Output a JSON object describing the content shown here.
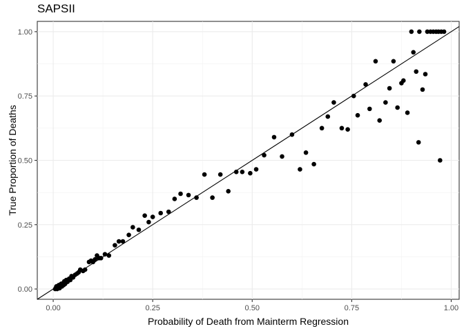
{
  "chart_data": {
    "type": "scatter",
    "title": "SAPSII",
    "xlabel": "Probability of Death from Mainterm Regression",
    "ylabel": "True Proportion of Deaths",
    "xlim": [
      -0.04,
      1.02
    ],
    "ylim": [
      -0.04,
      1.04
    ],
    "x_ticks": [
      0.0,
      0.25,
      0.5,
      0.75,
      1.0
    ],
    "x_tick_labels": [
      "0.00",
      "0.25",
      "0.50",
      "0.75",
      "1.00"
    ],
    "y_ticks": [
      0.0,
      0.25,
      0.5,
      0.75,
      1.0
    ],
    "y_tick_labels": [
      "0.00",
      "0.25",
      "0.50",
      "0.75",
      "1.00"
    ],
    "grid": true,
    "reference_line": "y = x",
    "points": [
      [
        0.005,
        0.0
      ],
      [
        0.007,
        0.005
      ],
      [
        0.008,
        0.01
      ],
      [
        0.01,
        0.0
      ],
      [
        0.012,
        0.008
      ],
      [
        0.014,
        0.015
      ],
      [
        0.016,
        0.003
      ],
      [
        0.018,
        0.012
      ],
      [
        0.02,
        0.02
      ],
      [
        0.022,
        0.01
      ],
      [
        0.024,
        0.022
      ],
      [
        0.026,
        0.015
      ],
      [
        0.028,
        0.03
      ],
      [
        0.03,
        0.02
      ],
      [
        0.033,
        0.035
      ],
      [
        0.036,
        0.028
      ],
      [
        0.04,
        0.04
      ],
      [
        0.043,
        0.035
      ],
      [
        0.046,
        0.05
      ],
      [
        0.05,
        0.045
      ],
      [
        0.055,
        0.055
      ],
      [
        0.06,
        0.06
      ],
      [
        0.064,
        0.065
      ],
      [
        0.068,
        0.075
      ],
      [
        0.075,
        0.07
      ],
      [
        0.08,
        0.075
      ],
      [
        0.09,
        0.105
      ],
      [
        0.095,
        0.11
      ],
      [
        0.1,
        0.105
      ],
      [
        0.105,
        0.115
      ],
      [
        0.11,
        0.13
      ],
      [
        0.115,
        0.12
      ],
      [
        0.12,
        0.12
      ],
      [
        0.13,
        0.135
      ],
      [
        0.14,
        0.13
      ],
      [
        0.155,
        0.17
      ],
      [
        0.165,
        0.185
      ],
      [
        0.175,
        0.185
      ],
      [
        0.19,
        0.21
      ],
      [
        0.2,
        0.24
      ],
      [
        0.215,
        0.23
      ],
      [
        0.23,
        0.285
      ],
      [
        0.24,
        0.26
      ],
      [
        0.25,
        0.28
      ],
      [
        0.27,
        0.295
      ],
      [
        0.29,
        0.3
      ],
      [
        0.305,
        0.35
      ],
      [
        0.32,
        0.37
      ],
      [
        0.34,
        0.365
      ],
      [
        0.36,
        0.355
      ],
      [
        0.38,
        0.445
      ],
      [
        0.4,
        0.355
      ],
      [
        0.42,
        0.445
      ],
      [
        0.44,
        0.38
      ],
      [
        0.46,
        0.455
      ],
      [
        0.475,
        0.455
      ],
      [
        0.495,
        0.45
      ],
      [
        0.51,
        0.465
      ],
      [
        0.53,
        0.52
      ],
      [
        0.555,
        0.59
      ],
      [
        0.575,
        0.515
      ],
      [
        0.6,
        0.6
      ],
      [
        0.62,
        0.465
      ],
      [
        0.635,
        0.53
      ],
      [
        0.655,
        0.485
      ],
      [
        0.675,
        0.625
      ],
      [
        0.69,
        0.67
      ],
      [
        0.705,
        0.725
      ],
      [
        0.725,
        0.625
      ],
      [
        0.74,
        0.62
      ],
      [
        0.755,
        0.75
      ],
      [
        0.765,
        0.675
      ],
      [
        0.785,
        0.795
      ],
      [
        0.795,
        0.7
      ],
      [
        0.81,
        0.885
      ],
      [
        0.82,
        0.655
      ],
      [
        0.835,
        0.725
      ],
      [
        0.845,
        0.78
      ],
      [
        0.855,
        0.885
      ],
      [
        0.865,
        0.705
      ],
      [
        0.875,
        0.8
      ],
      [
        0.88,
        0.81
      ],
      [
        0.89,
        0.685
      ],
      [
        0.9,
        1.0
      ],
      [
        0.905,
        0.92
      ],
      [
        0.912,
        0.845
      ],
      [
        0.918,
        0.57
      ],
      [
        0.92,
        1.0
      ],
      [
        0.928,
        0.775
      ],
      [
        0.935,
        0.835
      ],
      [
        0.94,
        1.0
      ],
      [
        0.948,
        1.0
      ],
      [
        0.955,
        1.0
      ],
      [
        0.962,
        1.0
      ],
      [
        0.968,
        1.0
      ],
      [
        0.972,
        0.5
      ],
      [
        0.975,
        1.0
      ],
      [
        0.982,
        1.0
      ]
    ]
  }
}
